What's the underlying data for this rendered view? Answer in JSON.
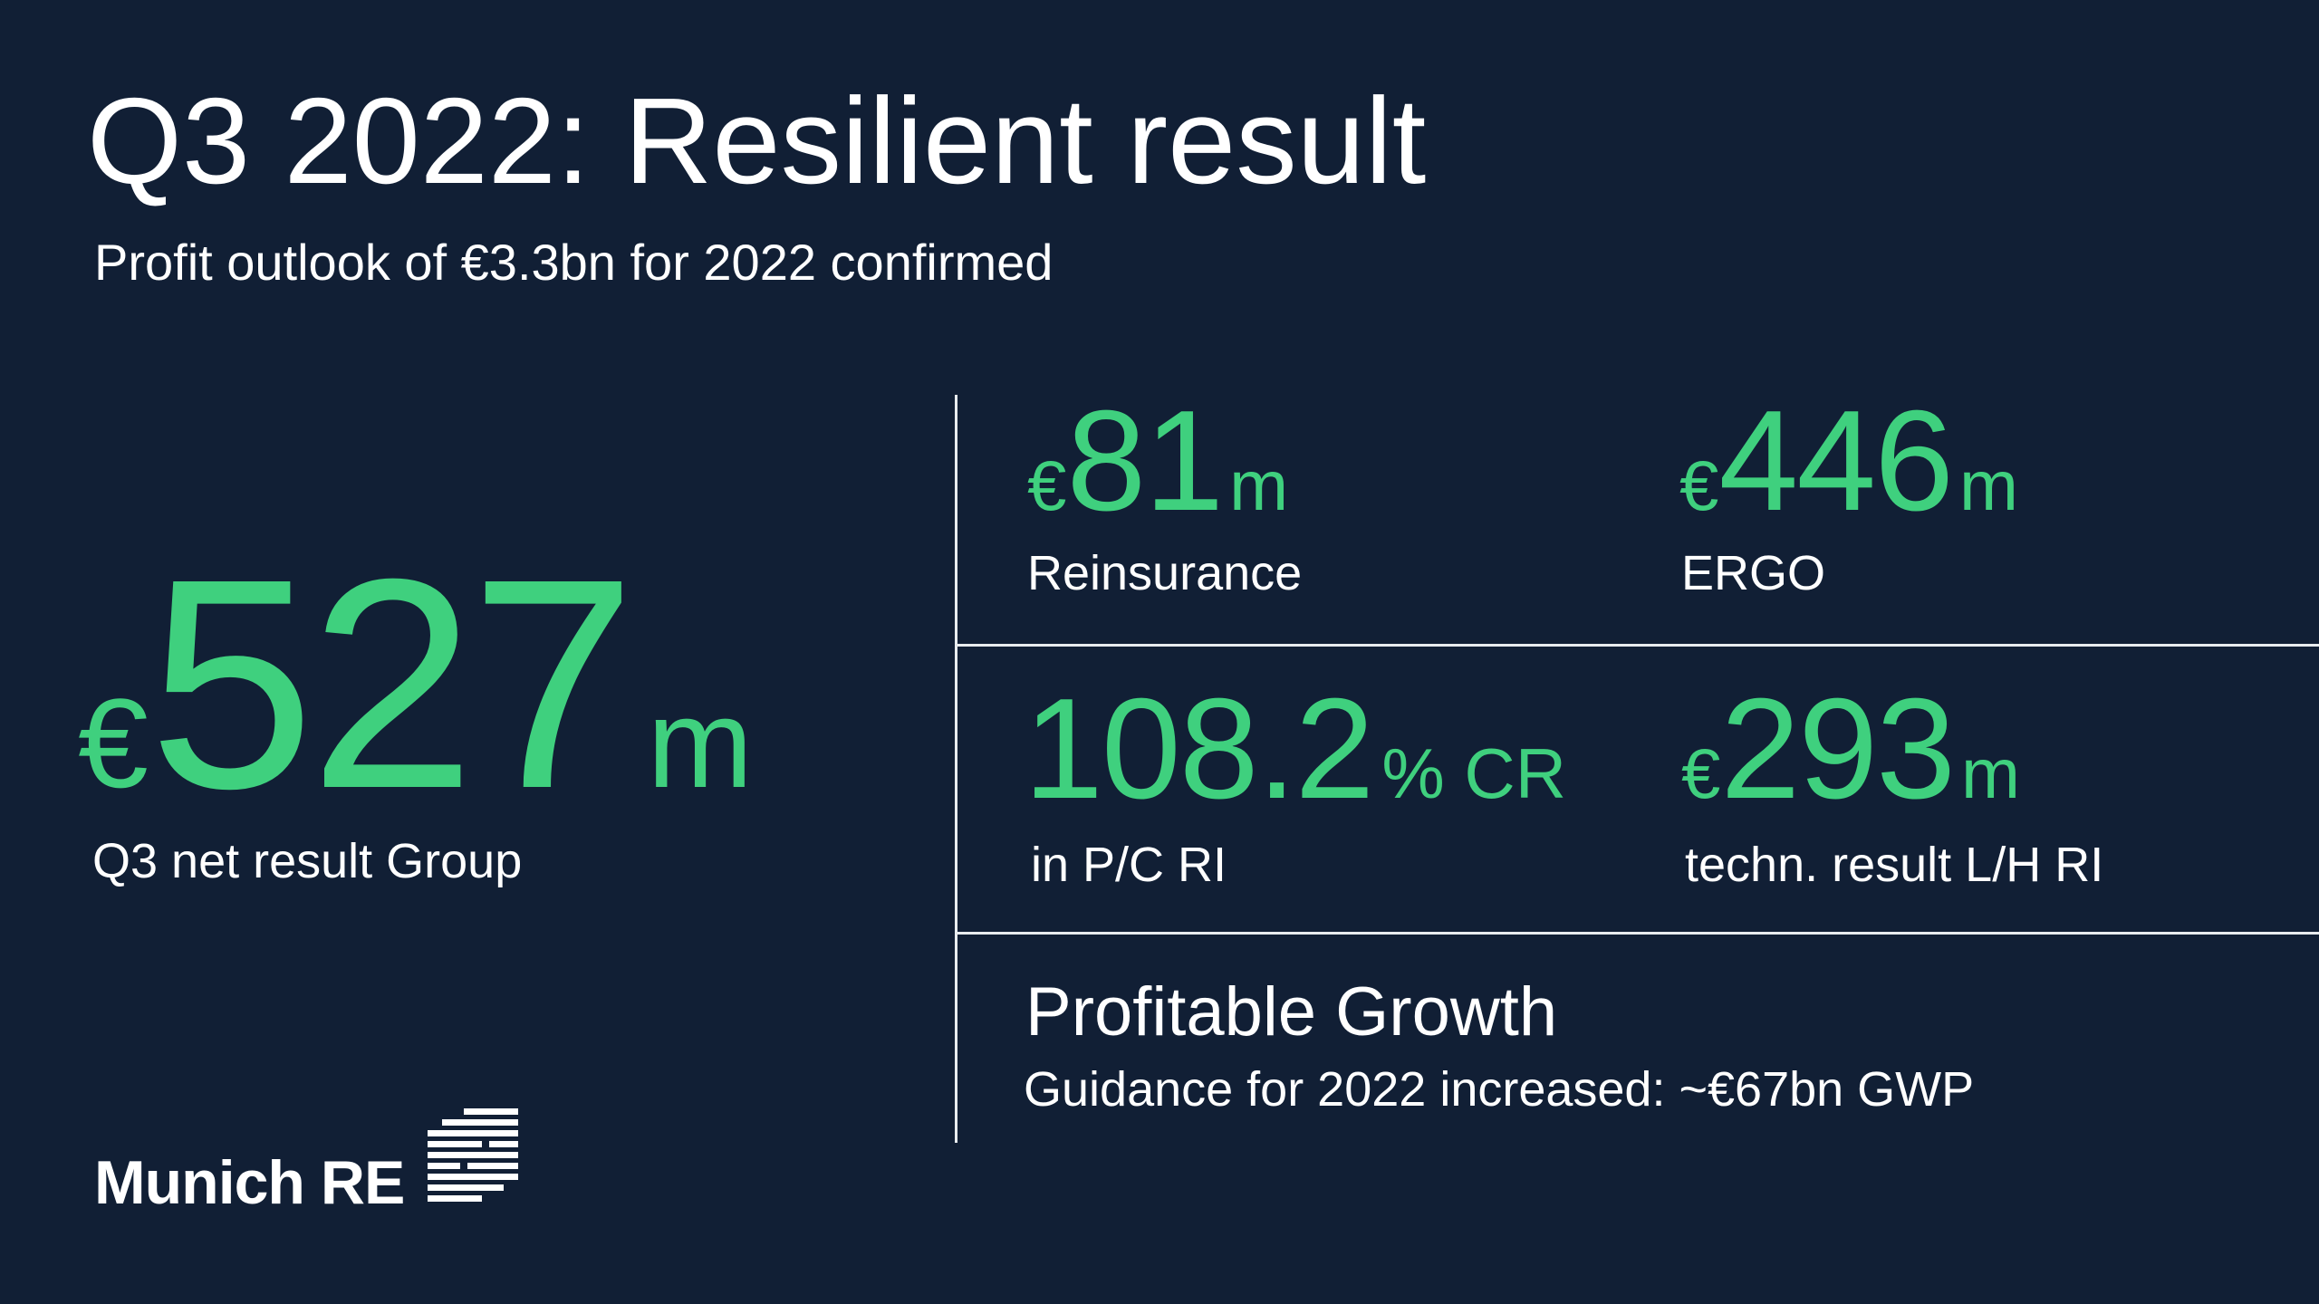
{
  "slide": {
    "title": "Q3 2022: Resilient result",
    "subtitle": "Profit outlook of €3.3bn for 2022 confirmed"
  },
  "main_kpi": {
    "currency": "€",
    "value": "527",
    "unit": "m",
    "label": "Q3 net result Group"
  },
  "kpis": {
    "reinsurance": {
      "currency": "€",
      "value": "81",
      "unit": "m",
      "label": "Reinsurance"
    },
    "ergo": {
      "currency": "€",
      "value": "446",
      "unit": "m",
      "label": "ERGO"
    },
    "combined_ratio": {
      "value": "108.2",
      "unit": "% CR",
      "label": "in P/C RI"
    },
    "technical_result": {
      "currency": "€",
      "value": "293",
      "unit": "m",
      "label": "techn. result L/H RI"
    }
  },
  "growth": {
    "title": "Profitable Growth",
    "text": "Guidance for 2022 increased: ~€67bn GWP"
  },
  "logo": {
    "text": "Munich RE"
  },
  "colors": {
    "background": "#111f35",
    "accent": "#3fd07e",
    "text": "#ffffff",
    "divider": "#e8ecef"
  }
}
